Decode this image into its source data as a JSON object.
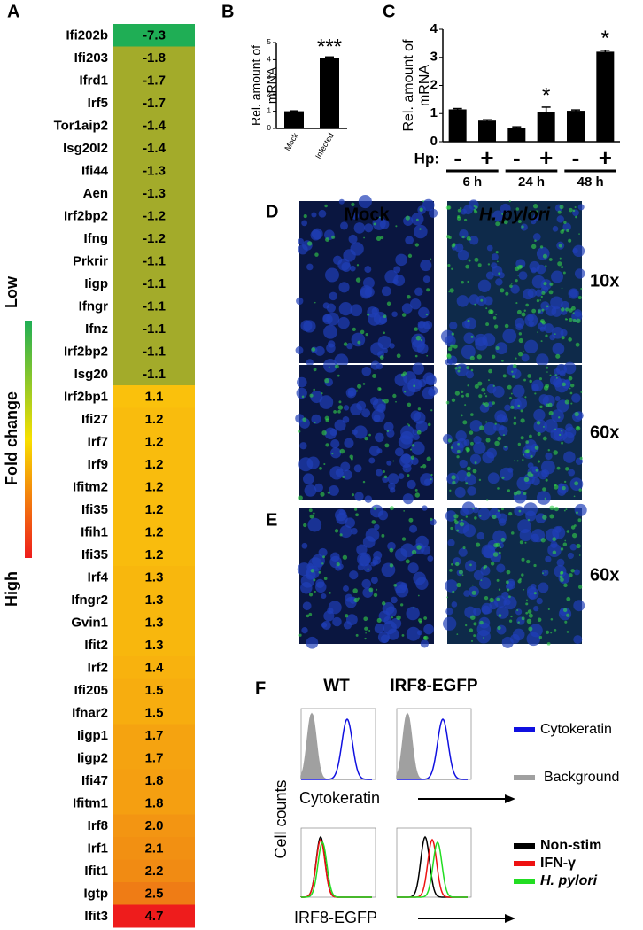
{
  "panel_labels": [
    "A",
    "B",
    "C",
    "D",
    "E",
    "F"
  ],
  "heatmap": {
    "genes": [
      "Ifi202b",
      "Ifi203",
      "Ifrd1",
      "Irf5",
      "Tor1aip2",
      "Isg20l2",
      "Ifi44",
      "Aen",
      "Irf2bp2",
      "Ifng",
      "Prkrir",
      "Iigp",
      "Ifngr",
      "Ifnz",
      "Irf2bp2",
      "Isg20",
      "Irf2bp1",
      "Ifi27",
      "Irf7",
      "Irf9",
      "Ifitm2",
      "Ifi35",
      "Ifih1",
      "Ifi35",
      "Irf4",
      "Ifngr2",
      "Gvin1",
      "Ifit2",
      "Irf2",
      "Ifi205",
      "Ifnar2",
      "Iigp1",
      "Iigp2",
      "Ifi47",
      "Ifitm1",
      "Irf8",
      "Irf1",
      "Ifit1",
      "Igtp",
      "Ifit3"
    ],
    "values": [
      -7.3,
      -1.8,
      -1.7,
      -1.7,
      -1.4,
      -1.4,
      -1.3,
      -1.3,
      -1.2,
      -1.2,
      -1.1,
      -1.1,
      -1.1,
      -1.1,
      -1.1,
      -1.1,
      1.1,
      1.2,
      1.2,
      1.2,
      1.2,
      1.2,
      1.2,
      1.2,
      1.3,
      1.3,
      1.3,
      1.3,
      1.4,
      1.5,
      1.5,
      1.7,
      1.7,
      1.8,
      1.8,
      2,
      2.1,
      2.2,
      2.5,
      4.7
    ],
    "value_labels": [
      "-7.3",
      "-1.8",
      "-1.7",
      "-1.7",
      "-1.4",
      "-1.4",
      "-1.3",
      "-1.3",
      "-1.2",
      "-1.2",
      "-1.1",
      "-1.1",
      "-1.1",
      "-1.1",
      "-1.1",
      "-1.1",
      "1.1",
      "1.2",
      "1.2",
      "1.2",
      "1.2",
      "1.2",
      "1.2",
      "1.2",
      "1.3",
      "1.3",
      "1.3",
      "1.3",
      "1.4",
      "1.5",
      "1.5",
      "1.7",
      "1.7",
      "1.8",
      "1.8",
      "2.0",
      "2.1",
      "2.2",
      "2.5",
      "4.7"
    ],
    "color_scale": [
      "#1fae55",
      "#a3ab2a",
      "#fac10c",
      "#ef7c15",
      "#ee1c1c"
    ],
    "legend": {
      "title": "Fold change",
      "low": "Low",
      "high": "High"
    }
  },
  "chart_data": [
    {
      "type": "bar",
      "y_label": [
        "Rel. amount of",
        "mRNA"
      ],
      "categories": [
        "Mock",
        "Infected"
      ],
      "values": [
        1,
        4.1
      ],
      "errors": [
        0.02,
        0.06
      ],
      "annotations": [
        {
          "index": 1,
          "text": "***"
        }
      ],
      "ylim": [
        0,
        5
      ],
      "yticks": [
        0,
        1,
        2,
        3,
        4,
        5
      ],
      "color": "#000000"
    },
    {
      "type": "bar",
      "y_label": [
        "Rel. amount of",
        "mRNA"
      ],
      "treatment_label": "Hp:",
      "categories": [
        "-",
        "+",
        "-",
        "+",
        "-",
        "+"
      ],
      "groups": [
        "6 h",
        "24 h",
        "48 h"
      ],
      "values": [
        1.15,
        0.75,
        0.5,
        1.05,
        1.1,
        3.2
      ],
      "errors": [
        0.03,
        0.03,
        0.03,
        0.18,
        0.03,
        0.05
      ],
      "annotations": [
        {
          "index": 3,
          "text": "*"
        },
        {
          "index": 5,
          "text": "*"
        }
      ],
      "ylim": [
        0,
        4
      ],
      "yticks": [
        0,
        1,
        2,
        3,
        4
      ],
      "color": "#000000"
    }
  ],
  "microscopy": {
    "columns": [
      "Mock",
      "H. pylori"
    ],
    "magnifications": [
      "10x",
      "60x",
      "60x"
    ]
  },
  "flow": {
    "columns": [
      "WT",
      "IRF8-EGFP"
    ],
    "y_label": "Cell counts",
    "top": {
      "x_label": "Cytokeratin",
      "legend": [
        {
          "name": "Cytokeratin",
          "color": "#1010e0"
        },
        {
          "name": "Background",
          "color": "#a0a0a0"
        }
      ]
    },
    "bottom": {
      "x_label": "IRF8-EGFP",
      "legend": [
        {
          "name": "Non-stim",
          "color": "#000000"
        },
        {
          "name": "IFN-γ",
          "color": "#ee1111"
        },
        {
          "name": "H. pylori",
          "color": "#22dd22"
        }
      ]
    }
  }
}
